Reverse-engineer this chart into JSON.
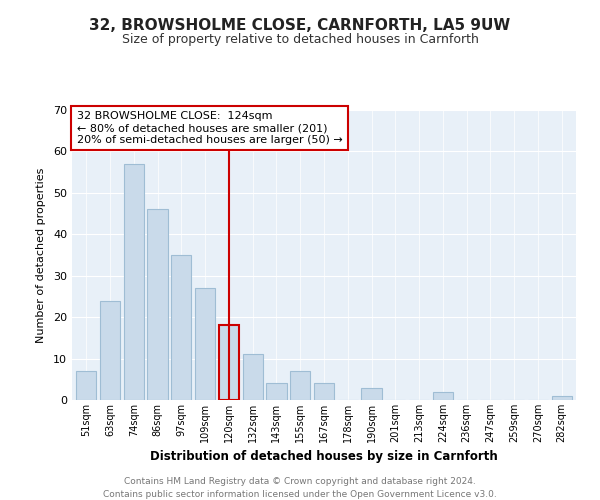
{
  "title": "32, BROWSHOLME CLOSE, CARNFORTH, LA5 9UW",
  "subtitle": "Size of property relative to detached houses in Carnforth",
  "xlabel": "Distribution of detached houses by size in Carnforth",
  "ylabel": "Number of detached properties",
  "bar_labels": [
    "51sqm",
    "63sqm",
    "74sqm",
    "86sqm",
    "97sqm",
    "109sqm",
    "120sqm",
    "132sqm",
    "143sqm",
    "155sqm",
    "167sqm",
    "178sqm",
    "190sqm",
    "201sqm",
    "213sqm",
    "224sqm",
    "236sqm",
    "247sqm",
    "259sqm",
    "270sqm",
    "282sqm"
  ],
  "bar_values": [
    7,
    24,
    57,
    46,
    35,
    27,
    18,
    11,
    4,
    7,
    4,
    0,
    3,
    0,
    0,
    2,
    0,
    0,
    0,
    0,
    1
  ],
  "bar_color": "#c9daea",
  "bar_edge_color": "#9fbdd4",
  "highlight_bar_index": 6,
  "highlight_bar_edge_color": "#cc0000",
  "vline_x_index": 6,
  "vline_color": "#cc0000",
  "ylim": [
    0,
    70
  ],
  "yticks": [
    0,
    10,
    20,
    30,
    40,
    50,
    60,
    70
  ],
  "annotation_title": "32 BROWSHOLME CLOSE:  124sqm",
  "annotation_line1": "← 80% of detached houses are smaller (201)",
  "annotation_line2": "20% of semi-detached houses are larger (50) →",
  "annotation_box_edge_color": "#cc0000",
  "annotation_box_face_color": "#ffffff",
  "footer_line1": "Contains HM Land Registry data © Crown copyright and database right 2024.",
  "footer_line2": "Contains public sector information licensed under the Open Government Licence v3.0.",
  "background_color": "#ffffff",
  "plot_background_color": "#e8f0f8"
}
